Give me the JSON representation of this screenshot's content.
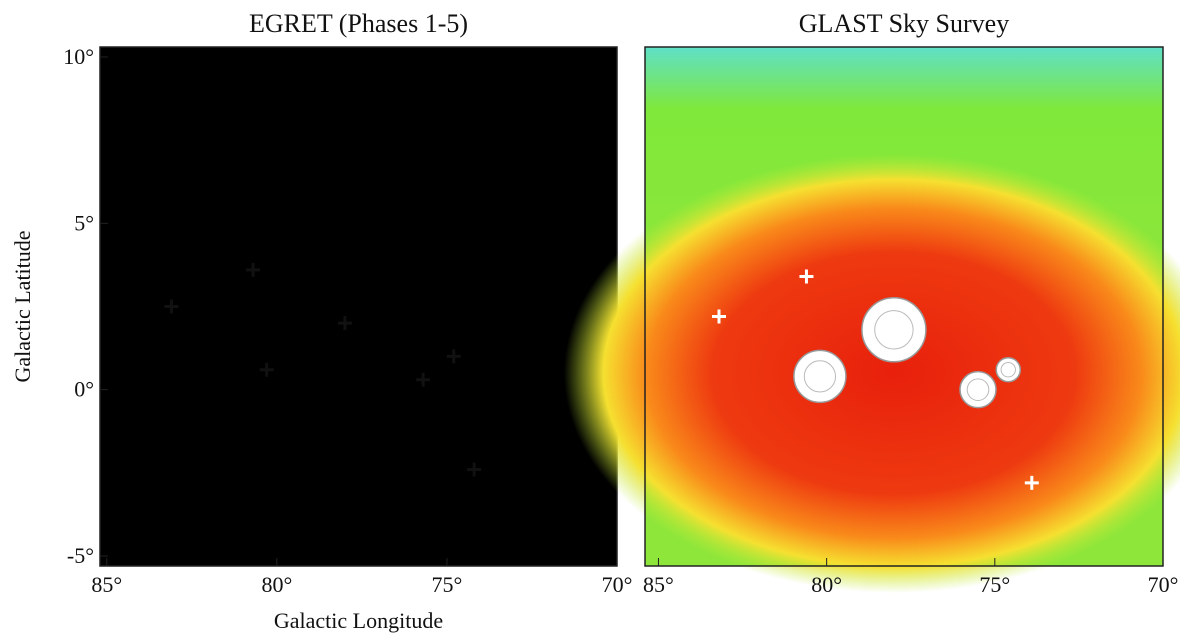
{
  "chart_data": [
    {
      "type": "map",
      "title": "EGRET (Phases 1-5)",
      "xlabel": "Galactic Longitude",
      "ylabel": "Galactic Latitude",
      "xlim": [
        85.2,
        70.0
      ],
      "ylim": [
        -5.3,
        10.3
      ],
      "xticks": [
        {
          "value": 85,
          "label": "85°"
        },
        {
          "value": 80,
          "label": "80°"
        },
        {
          "value": 75,
          "label": "75°"
        },
        {
          "value": 70,
          "label": "70°"
        }
      ],
      "yticks": [
        {
          "value": 10,
          "label": "10°"
        },
        {
          "value": 5,
          "label": "5°"
        },
        {
          "value": 0,
          "label": "0°"
        },
        {
          "value": -5,
          "label": "-5°"
        }
      ],
      "markers": {
        "x": [
          83.1,
          80.7,
          78.0,
          80.3,
          74.8,
          75.7,
          74.2
        ],
        "y": [
          2.5,
          3.6,
          2.0,
          0.6,
          1.0,
          0.3,
          -2.4
        ]
      }
    },
    {
      "type": "map",
      "title": "GLAST Sky Survey",
      "xlim": [
        85.4,
        70.0
      ],
      "ylim": [
        -5.3,
        10.3
      ],
      "xticks": [
        {
          "value": 85,
          "label": "85°"
        },
        {
          "value": 80,
          "label": "80°"
        },
        {
          "value": 75,
          "label": "75°"
        },
        {
          "value": 70,
          "label": "70°"
        }
      ],
      "markers": {
        "x": [
          80.6,
          73.9,
          83.2
        ],
        "y": [
          3.4,
          -2.8,
          2.2
        ]
      },
      "sources": {
        "x": [
          78.0,
          80.2,
          75.5,
          74.6
        ],
        "y": [
          1.8,
          0.4,
          0.0,
          0.6
        ]
      }
    }
  ]
}
